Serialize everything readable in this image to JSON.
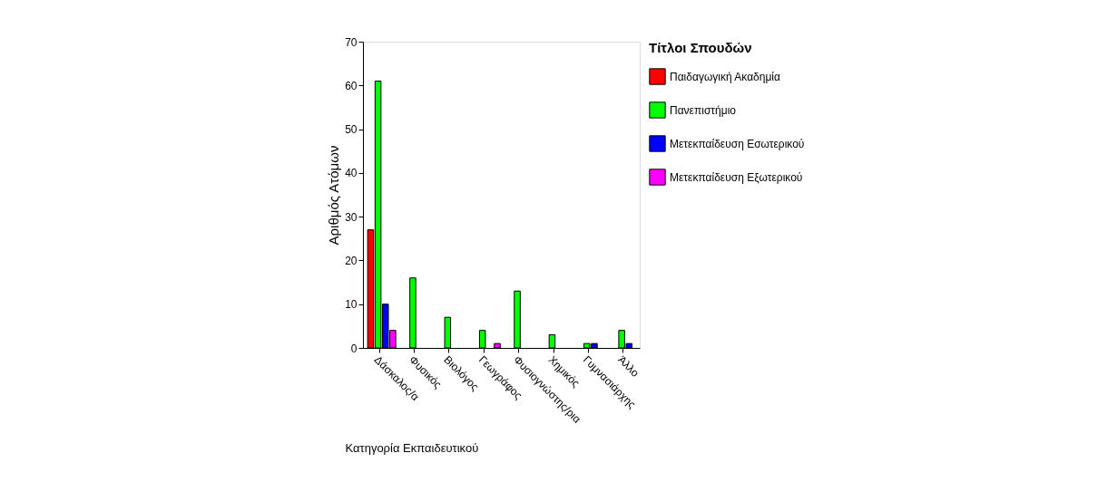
{
  "chart_data": {
    "type": "bar",
    "xlabel": "Κατηγορία Εκπαιδευτικού",
    "ylabel": "Αριθμός Ατόμων",
    "legend_title": "Τίτλοι Σπουδών",
    "categories": [
      "Δάσκαλος/α",
      "Φυσικός",
      "Βιολόγος",
      "Γεωγράφος",
      "Φυσιογνώστης/ρια",
      "Χημικός",
      "Γυμνασιάρχης",
      "Άλλο"
    ],
    "series": [
      {
        "name": "Παιδαγωγική Ακαδημία",
        "color": "#ff0000",
        "values": [
          27,
          null,
          null,
          null,
          null,
          null,
          null,
          null
        ]
      },
      {
        "name": "Πανεπιστήμιο",
        "color": "#00ff00",
        "values": [
          61,
          16,
          7,
          4,
          13,
          3,
          1,
          4
        ]
      },
      {
        "name": "Μετεκπαίδευση Εσωτερικού",
        "color": "#0000ff",
        "values": [
          10,
          null,
          null,
          null,
          null,
          null,
          1,
          1
        ]
      },
      {
        "name": "Μετεκπαίδευση Εξωτερικού",
        "color": "#ff00ff",
        "values": [
          4,
          null,
          null,
          1,
          null,
          null,
          null,
          null
        ]
      }
    ],
    "ylim": [
      0,
      70
    ],
    "yticks": [
      0,
      10,
      20,
      30,
      40,
      50,
      60,
      70
    ],
    "grid": false,
    "legend": "right"
  }
}
